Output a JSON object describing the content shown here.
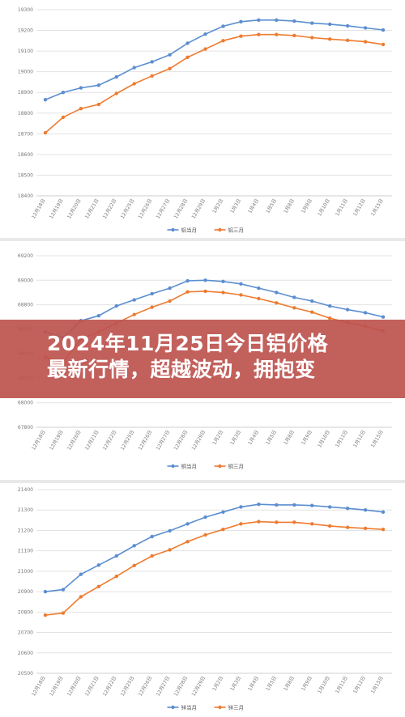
{
  "banner": {
    "line1": "2024年11月25日今日铝价格",
    "line2": "最新行情，超越波动，拥抱变"
  },
  "colors": {
    "series_blue": "#5b8ed0",
    "series_orange": "#ee7b30",
    "banner": "#bd524e"
  },
  "chart_data": [
    {
      "type": "line",
      "categories": [
        "12月18日",
        "12月19日",
        "12月20日",
        "12月21日",
        "12月22日",
        "12月25日",
        "12月26日",
        "12月27日",
        "12月28日",
        "12月29日",
        "1月2日",
        "1月3日",
        "1月4日",
        "1月5日",
        "1月8日",
        "1月9日",
        "1月10日",
        "1月11日",
        "1月12日",
        "1月15日"
      ],
      "ylim": [
        18400,
        19300
      ],
      "yticks": [
        18400,
        18500,
        18600,
        18700,
        18800,
        18900,
        19000,
        19100,
        19200,
        19300
      ],
      "grid": true,
      "legend_position": "bottom-center",
      "series": [
        {
          "name": "铝当月",
          "values": [
            18865,
            18900,
            18922,
            18935,
            18975,
            19020,
            19048,
            19082,
            19138,
            19182,
            19220,
            19242,
            19250,
            19250,
            19245,
            19235,
            19230,
            19222,
            19212,
            19202
          ]
        },
        {
          "name": "铝三月",
          "values": [
            18705,
            18780,
            18822,
            18842,
            18895,
            18942,
            18980,
            19015,
            19070,
            19110,
            19150,
            19172,
            19180,
            19180,
            19175,
            19165,
            19158,
            19152,
            19145,
            19132
          ]
        }
      ]
    },
    {
      "type": "line",
      "categories": [
        "12月18日",
        "12月19日",
        "12月20日",
        "12月21日",
        "12月22日",
        "12月25日",
        "12月26日",
        "12月27日",
        "12月28日",
        "12月29日",
        "1月2日",
        "1月3日",
        "1月4日",
        "1月5日",
        "1月8日",
        "1月9日",
        "1月10日",
        "1月11日",
        "1月12日",
        "1月15日"
      ],
      "ylim": [
        67800,
        69200
      ],
      "yticks": [
        67800,
        68000,
        68200,
        68400,
        68600,
        68800,
        69000,
        69200
      ],
      "grid": true,
      "legend_position": "bottom-center",
      "series": [
        {
          "name": "铜当月",
          "values": [
            68580,
            68530,
            68670,
            68710,
            68790,
            68840,
            68890,
            68935,
            68995,
            69000,
            68990,
            68970,
            68935,
            68900,
            68860,
            68830,
            68790,
            68760,
            68735,
            68700
          ]
        },
        {
          "name": "铜三月",
          "values": [
            68370,
            68330,
            68520,
            68580,
            68650,
            68720,
            68780,
            68830,
            68905,
            68910,
            68900,
            68880,
            68850,
            68815,
            68775,
            68740,
            68690,
            68655,
            68625,
            68585
          ]
        }
      ]
    },
    {
      "type": "line",
      "categories": [
        "12月18日",
        "12月19日",
        "12月20日",
        "12月21日",
        "12月22日",
        "12月25日",
        "12月26日",
        "12月27日",
        "12月28日",
        "12月29日",
        "1月2日",
        "1月3日",
        "1月4日",
        "1月5日",
        "1月8日",
        "1月9日",
        "1月10日",
        "1月11日",
        "1月12日",
        "1月15日"
      ],
      "ylim": [
        20500,
        21400
      ],
      "yticks": [
        20500,
        20600,
        20700,
        20800,
        20900,
        21000,
        21100,
        21200,
        21300,
        21400
      ],
      "grid": true,
      "legend_position": "bottom-center",
      "series": [
        {
          "name": "锌当月",
          "values": [
            20900,
            20910,
            20985,
            21030,
            21075,
            21125,
            21170,
            21198,
            21232,
            21265,
            21290,
            21315,
            21328,
            21325,
            21325,
            21322,
            21315,
            21308,
            21300,
            21290
          ]
        },
        {
          "name": "锌三月",
          "values": [
            20785,
            20795,
            20875,
            20925,
            20975,
            21028,
            21075,
            21105,
            21145,
            21178,
            21205,
            21232,
            21243,
            21240,
            21240,
            21232,
            21222,
            21215,
            21210,
            21205
          ]
        }
      ]
    }
  ]
}
